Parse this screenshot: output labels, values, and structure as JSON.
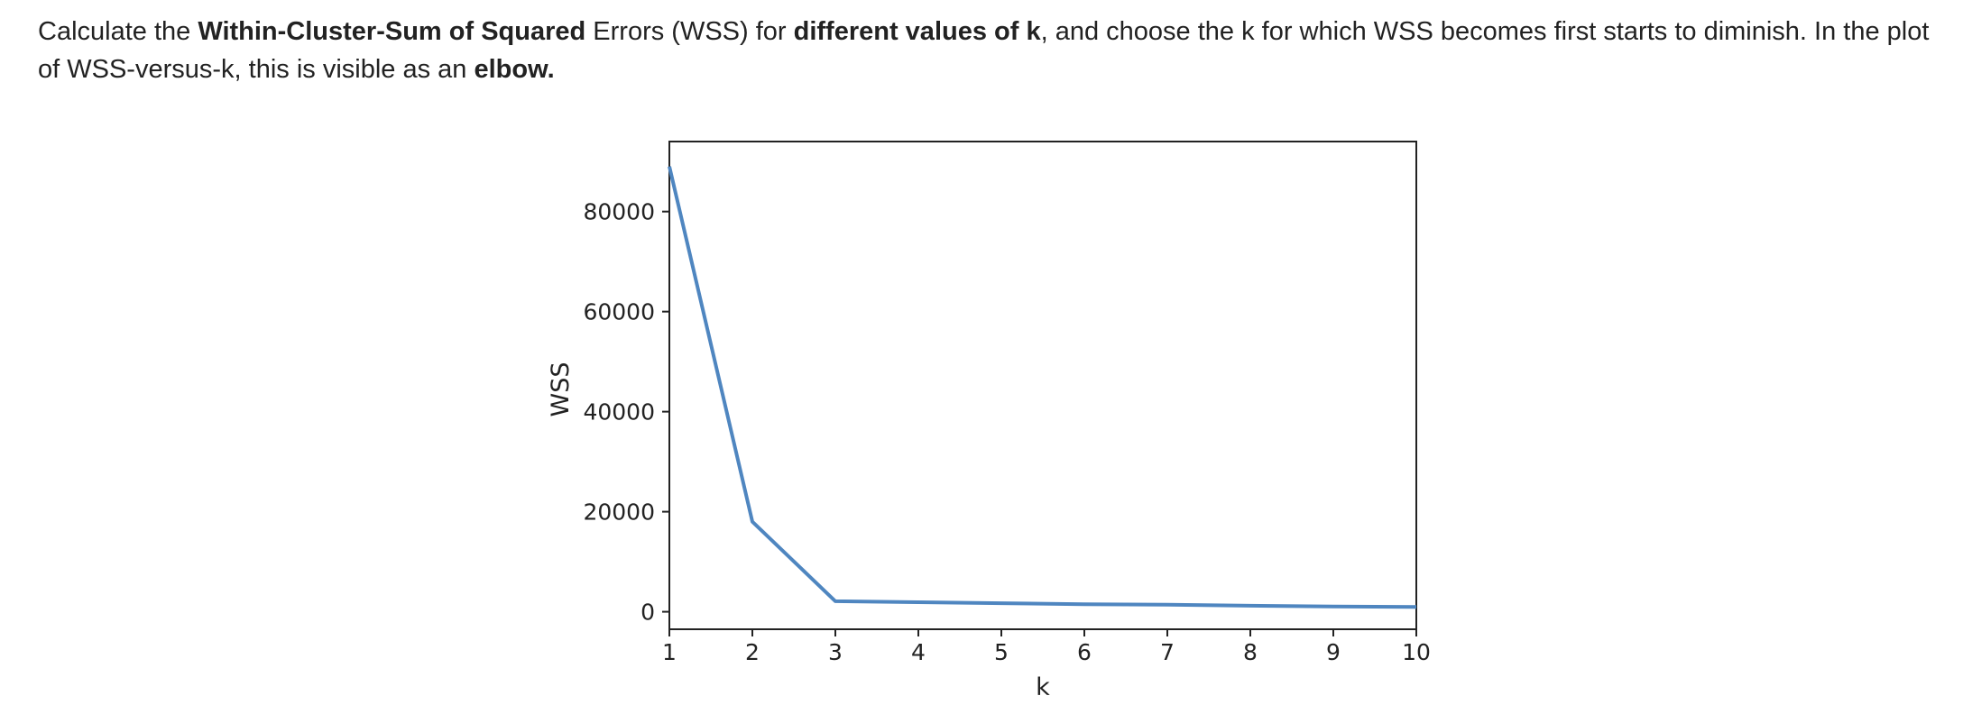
{
  "text": {
    "p1": "Calculate the ",
    "b1": "Within-Cluster-Sum of Squared",
    "p2": " Errors (WSS) for ",
    "b2": "different values of k",
    "p3": ", and choose the k for which WSS becomes first starts to diminish. In the plot of WSS-versus-k, this is visible as an ",
    "b3": "elbow."
  },
  "chart_data": {
    "type": "line",
    "x": [
      1,
      2,
      3,
      4,
      5,
      6,
      7,
      8,
      9,
      10
    ],
    "series": [
      {
        "values": [
          89000,
          18000,
          2100,
          1900,
          1700,
          1500,
          1400,
          1200,
          1050,
          950
        ],
        "color": "#4f86c0"
      }
    ],
    "xlabel": "k",
    "ylabel": "WSS",
    "xlim": [
      1,
      10
    ],
    "ylim": [
      -3500,
      94000
    ],
    "xticks": [
      "1",
      "2",
      "3",
      "4",
      "5",
      "6",
      "7",
      "8",
      "9",
      "10"
    ],
    "yticks": [
      {
        "value": 0,
        "label": "0"
      },
      {
        "value": 20000,
        "label": "20000"
      },
      {
        "value": 40000,
        "label": "40000"
      },
      {
        "value": 60000,
        "label": "60000"
      },
      {
        "value": 80000,
        "label": "80000"
      }
    ],
    "grid": false,
    "legend": "none"
  }
}
